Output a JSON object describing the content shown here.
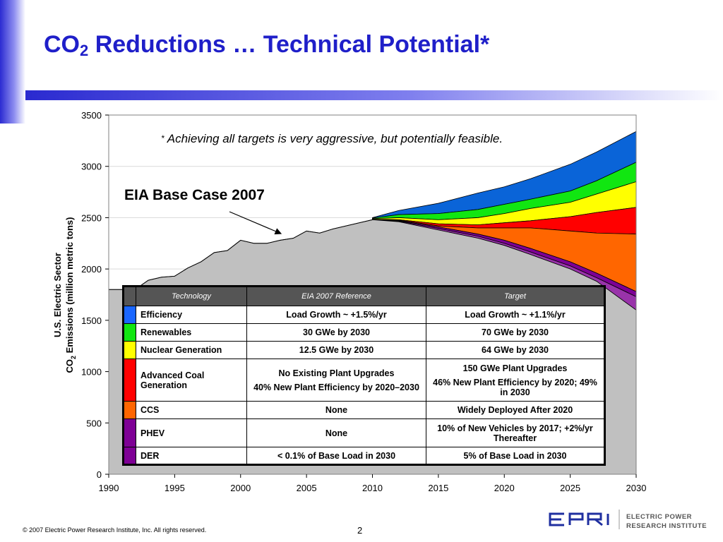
{
  "title": {
    "prefix": "CO",
    "sub": "2",
    "rest": " Reductions … Technical Potential*"
  },
  "note": {
    "star": "*",
    "text": " Achieving all targets is very aggressive, but potentially feasible."
  },
  "callout": "EIA Base Case 2007",
  "colors": {
    "accent": "#1f1fc9",
    "base_area": "#c0c0c0",
    "efficiency": "#0a64d8",
    "renewables": "#11e611",
    "nuclear": "#ffff00",
    "adv_coal": "#ff0000",
    "ccs": "#ff6600",
    "phev": "#7e0095",
    "der": "#9933aa"
  },
  "table": {
    "headers": [
      "Technology",
      "EIA 2007 Reference",
      "Target"
    ],
    "rows": [
      {
        "color": "#1a66ff",
        "tech": "Efficiency",
        "ref": [
          "Load Growth ~ +1.5%/yr"
        ],
        "target": [
          "Load Growth ~ +1.1%/yr"
        ]
      },
      {
        "color": "#11e611",
        "tech": "Renewables",
        "ref": [
          "30 GWe by 2030"
        ],
        "target": [
          "70 GWe by 2030"
        ]
      },
      {
        "color": "#ffff00",
        "tech": "Nuclear Generation",
        "ref": [
          "12.5 GWe by 2030"
        ],
        "target": [
          "64 GWe by 2030"
        ]
      },
      {
        "color": "#ff0000",
        "tech": "Advanced Coal Generation",
        "ref": [
          "No Existing Plant Upgrades",
          "40% New Plant Efficiency by 2020–2030"
        ],
        "target": [
          "150 GWe Plant Upgrades",
          "46% New Plant Efficiency by 2020; 49% in 2030"
        ]
      },
      {
        "color": "#ff6600",
        "tech": "CCS",
        "ref": [
          "None"
        ],
        "target": [
          "Widely Deployed After 2020"
        ]
      },
      {
        "color": "#7e0095",
        "tech": "PHEV",
        "ref": [
          "None"
        ],
        "target": [
          "10% of New Vehicles by 2017; +2%/yr Thereafter"
        ]
      },
      {
        "color": "#7e0095",
        "tech": "DER",
        "ref": [
          "< 0.1% of Base Load in 2030"
        ],
        "target": [
          "5% of Base Load in 2030"
        ]
      }
    ]
  },
  "footer": {
    "copyright": "© 2007 Electric Power Research Institute, Inc. All rights reserved.",
    "page": "2",
    "logo_line1": "ELECTRIC POWER",
    "logo_line2": "RESEARCH INSTITUTE"
  },
  "chart_data": {
    "type": "area",
    "ylabel_line1": "U.S. Electric Sector",
    "ylabel_line2_pre": "CO",
    "ylabel_line2_sub": "2",
    "ylabel_line2_post": " Emissions (million metric tons)",
    "xlim": [
      1990,
      2030
    ],
    "ylim": [
      0,
      3500
    ],
    "xticks": [
      1990,
      1995,
      2000,
      2005,
      2010,
      2015,
      2020,
      2025,
      2030
    ],
    "yticks": [
      0,
      500,
      1000,
      1500,
      2000,
      2500,
      3000,
      3500
    ],
    "historical": {
      "x": [
        1990,
        1992,
        1993,
        1994,
        1995,
        1996,
        1997,
        1998,
        1999,
        2000,
        2001,
        2002,
        2003,
        2004,
        2005,
        2006,
        2007,
        2008,
        2009,
        2010
      ],
      "y": [
        1800,
        1800,
        1890,
        1920,
        1930,
        2010,
        2070,
        2160,
        2180,
        2280,
        2250,
        2250,
        2280,
        2300,
        2370,
        2350,
        2390,
        2420,
        2450,
        2480
      ]
    },
    "projection_x": [
      2010,
      2012,
      2015,
      2018,
      2020,
      2022,
      2025,
      2027,
      2030
    ],
    "series": [
      {
        "name": "EIA Base Case 2007",
        "color": "#0a64d8",
        "values": [
          2500,
          2570,
          2640,
          2740,
          2800,
          2880,
          3020,
          3140,
          3340
        ]
      },
      {
        "name": "Efficiency",
        "color": "#11e611",
        "values": [
          2495,
          2530,
          2540,
          2580,
          2630,
          2680,
          2760,
          2860,
          3040
        ]
      },
      {
        "name": "Renewables",
        "color": "#ffff00",
        "values": [
          2490,
          2500,
          2480,
          2500,
          2540,
          2590,
          2650,
          2730,
          2850
        ]
      },
      {
        "name": "Nuclear Generation",
        "color": "#ff0000",
        "values": [
          2485,
          2480,
          2440,
          2430,
          2450,
          2470,
          2510,
          2550,
          2600
        ]
      },
      {
        "name": "Advanced Coal Generation",
        "color": "#ff6600",
        "values": [
          2480,
          2475,
          2420,
          2400,
          2400,
          2400,
          2370,
          2350,
          2340
        ]
      },
      {
        "name": "CCS",
        "color": "#7e0095",
        "values": [
          2480,
          2470,
          2410,
          2340,
          2280,
          2200,
          2070,
          1960,
          1780
        ]
      },
      {
        "name": "PHEV",
        "color": "#9933aa",
        "values": [
          2478,
          2465,
          2395,
          2320,
          2250,
          2165,
          2030,
          1915,
          1730
        ]
      },
      {
        "name": "DER",
        "color": "#c0c0c0",
        "values": [
          2476,
          2460,
          2380,
          2300,
          2230,
          2140,
          2000,
          1880,
          1600
        ]
      }
    ]
  }
}
